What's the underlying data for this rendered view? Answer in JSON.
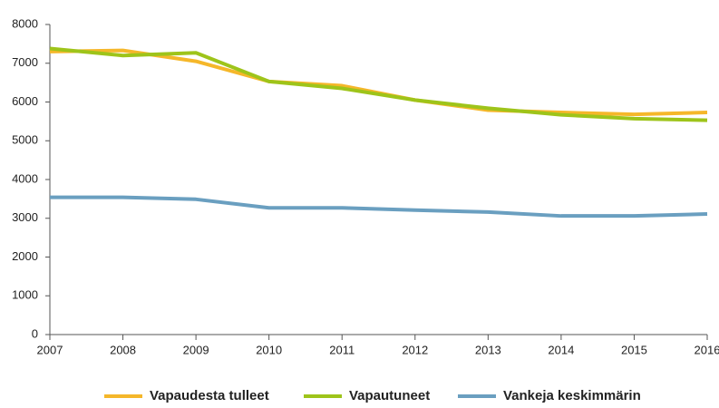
{
  "chart_data": {
    "type": "line",
    "x": [
      2007,
      2008,
      2009,
      2010,
      2011,
      2012,
      2013,
      2014,
      2015,
      2016
    ],
    "xlim": [
      2007,
      2016
    ],
    "xticks": [
      2007,
      2008,
      2009,
      2010,
      2011,
      2012,
      2013,
      2014,
      2015,
      2016
    ],
    "ylim": [
      0,
      8000
    ],
    "yticks": [
      0,
      1000,
      2000,
      3000,
      4000,
      5000,
      6000,
      7000,
      8000
    ],
    "grid": false,
    "legend": "bottom",
    "series": [
      {
        "name": "Vapaudesta tulleet",
        "color": "#f5b72a",
        "values": [
          7300,
          7330,
          7050,
          6530,
          6420,
          6050,
          5790,
          5730,
          5680,
          5730
        ]
      },
      {
        "name": "Vapautuneet",
        "color": "#9ec41a",
        "values": [
          7380,
          7200,
          7270,
          6530,
          6350,
          6050,
          5840,
          5670,
          5570,
          5530
        ]
      },
      {
        "name": "Vankeja keskimmärin",
        "color": "#6a9fc0",
        "values": [
          3540,
          3540,
          3490,
          3270,
          3270,
          3210,
          3160,
          3060,
          3060,
          3110
        ]
      }
    ]
  }
}
